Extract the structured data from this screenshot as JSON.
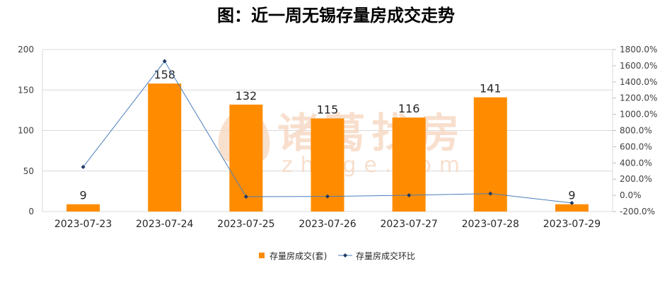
{
  "chart_data": {
    "type": "bar",
    "title": "图：近一周无锡存量房成交走势",
    "categories": [
      "2023-07-23",
      "2023-07-24",
      "2023-07-25",
      "2023-07-26",
      "2023-07-27",
      "2023-07-28",
      "2023-07-29"
    ],
    "series": [
      {
        "name": "存量房成交(套)",
        "type": "bar",
        "axis": "left",
        "values": [
          9,
          158,
          132,
          115,
          116,
          141,
          9
        ],
        "data_labels": true
      },
      {
        "name": "存量房成交环比",
        "type": "line",
        "axis": "right",
        "unit": "%",
        "marker": "diamond",
        "values": [
          350.0,
          1655.6,
          -16.5,
          -12.9,
          0.9,
          21.6,
          -93.6
        ]
      }
    ],
    "ylim": [
      0,
      200
    ],
    "y_ticks": [
      "0",
      "50",
      "100",
      "150",
      "200"
    ],
    "y2lim": [
      -200,
      1800
    ],
    "y2_ticks": [
      "-200.0%",
      "0.0%",
      "200.0%",
      "400.0%",
      "600.0%",
      "800.0%",
      "1000.0%",
      "1200.0%",
      "1400.0%",
      "1600.0%",
      "1800.0%"
    ],
    "grid": true,
    "legend": "bottom"
  },
  "watermark": {
    "brand": "诸葛找房",
    "domain": "zhuge.com"
  },
  "colors": {
    "bar": "#FF8C00",
    "line": "#4A7EBB",
    "marker": "#1F3864",
    "grid": "#D9D9D9",
    "axis": "#BFBFBF",
    "watermark": "#F6D5BD"
  }
}
